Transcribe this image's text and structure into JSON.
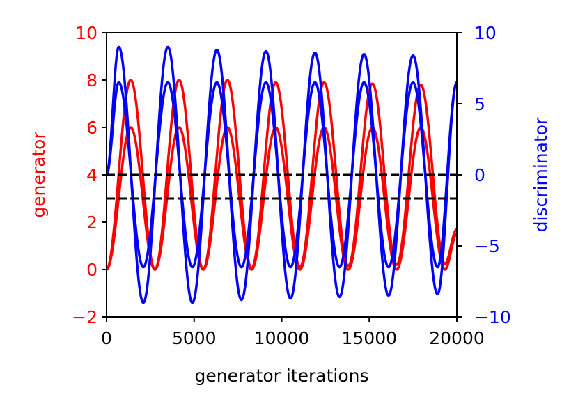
{
  "chart_data": {
    "type": "line",
    "title": "",
    "xlabel": "generator iterations",
    "ylabel_left": "generator",
    "ylabel_right": "discriminator",
    "xlim": [
      0,
      20000
    ],
    "ylim_left": [
      -2,
      10
    ],
    "ylim_right": [
      -10,
      10
    ],
    "x_ticks": [
      0,
      5000,
      10000,
      15000,
      20000
    ],
    "y_left_ticks": [
      -2,
      0,
      2,
      4,
      6,
      8,
      10
    ],
    "y_right_ticks": [
      -10,
      -5,
      0,
      5,
      10
    ],
    "x_tick_labels": [
      "0",
      "5000",
      "10000",
      "15000",
      "20000"
    ],
    "y_left_tick_labels": [
      "−2",
      "0",
      "2",
      "4",
      "6",
      "8",
      "10"
    ],
    "y_right_tick_labels": [
      "−10",
      "−5",
      "0",
      "5",
      "10"
    ],
    "grid": false,
    "colors": {
      "generator": "#ff0000",
      "discriminator": "#0000ff",
      "reference": "#000000"
    },
    "reference_lines": [
      {
        "axis": "left",
        "y": 4,
        "style": "dashed"
      },
      {
        "axis": "left",
        "y": 3,
        "style": "dashed"
      }
    ],
    "series": [
      {
        "axis": "left",
        "color": "#ff0000",
        "x": [
          0,
          1380,
          2760,
          4140,
          5520,
          6900,
          8280,
          9660,
          11040,
          12420,
          13800,
          15180,
          16560,
          17940,
          19320,
          20000
        ],
        "y": [
          0.0,
          8.0,
          0.0,
          8.0,
          0.0,
          8.0,
          0.05,
          7.9,
          0.1,
          7.9,
          0.15,
          7.85,
          0.2,
          7.8,
          0.25,
          1.7
        ]
      },
      {
        "axis": "left",
        "color": "#ff0000",
        "x": [
          0,
          1380,
          2760,
          4140,
          5520,
          6900,
          8280,
          9660,
          11040,
          12420,
          13800,
          15180,
          16560,
          17940,
          19320,
          20000
        ],
        "y": [
          0.0,
          6.0,
          0.0,
          6.0,
          0.0,
          6.0,
          0.0,
          6.0,
          0.0,
          6.0,
          0.0,
          6.0,
          0.0,
          6.0,
          0.0,
          1.5
        ]
      },
      {
        "axis": "right",
        "color": "#0000ff",
        "x": [
          0,
          700,
          2100,
          3500,
          4900,
          6300,
          7700,
          9100,
          10500,
          11900,
          13300,
          14700,
          16100,
          17500,
          18900,
          20000
        ],
        "y": [
          0.0,
          9.0,
          -9.0,
          9.0,
          -9.0,
          8.8,
          -8.8,
          8.7,
          -8.7,
          8.6,
          -8.6,
          8.5,
          -8.5,
          8.4,
          -8.4,
          6.5
        ]
      },
      {
        "axis": "right",
        "color": "#0000ff",
        "x": [
          0,
          700,
          2100,
          3500,
          4900,
          6300,
          7700,
          9100,
          10500,
          11900,
          13300,
          14700,
          16100,
          17500,
          18900,
          20000
        ],
        "y": [
          0.0,
          6.5,
          -6.5,
          6.5,
          -6.5,
          6.5,
          -6.5,
          6.5,
          -6.5,
          6.5,
          -6.5,
          6.5,
          -6.5,
          6.5,
          -6.5,
          6.5
        ]
      }
    ]
  }
}
